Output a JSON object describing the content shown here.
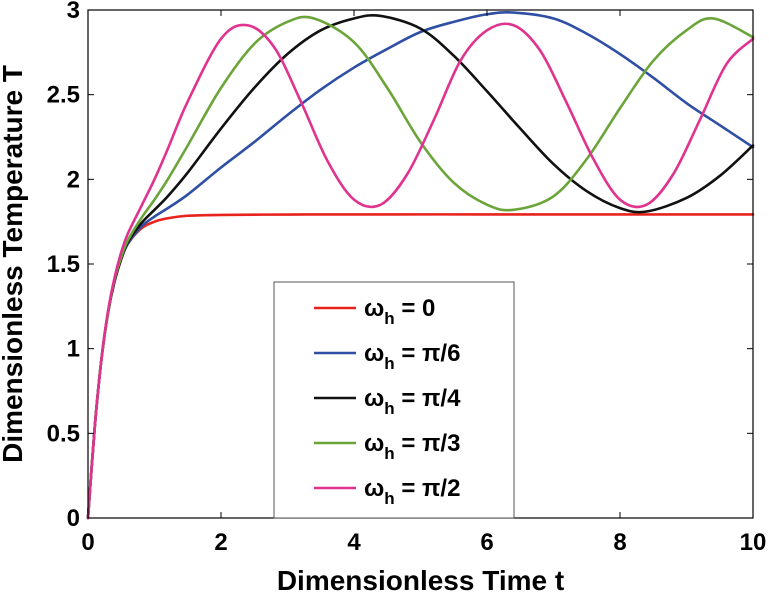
{
  "chart_data": {
    "type": "line",
    "title": "",
    "xlabel": "Dimensionless Time t",
    "ylabel": "Dimensionless Temperature T",
    "xlim": [
      0,
      10
    ],
    "ylim": [
      0,
      3
    ],
    "xticks": [
      0,
      2,
      4,
      6,
      8,
      10
    ],
    "yticks": [
      0,
      0.5,
      1,
      1.5,
      2,
      2.5,
      3
    ],
    "xtick_labels": [
      "0",
      "2",
      "4",
      "6",
      "8",
      "10"
    ],
    "ytick_labels": [
      "0",
      "0.5",
      "1",
      "1.5",
      "2",
      "2.5",
      "3"
    ],
    "grid": false,
    "legend_position": "bottom-center",
    "series": [
      {
        "name": "ω_h = 0",
        "legend_main": "ω",
        "legend_sub": "h",
        "legend_rest": " = 0",
        "color": "#e8231d",
        "x": [
          0,
          0.1,
          0.2,
          0.3,
          0.4,
          0.5,
          0.6,
          0.8,
          1.0,
          1.2,
          1.5,
          2.0,
          3.0,
          4.0,
          6.0,
          8.0,
          10.0
        ],
        "y": [
          0,
          0.53,
          0.93,
          1.21,
          1.4,
          1.53,
          1.62,
          1.71,
          1.75,
          1.77,
          1.785,
          1.79,
          1.792,
          1.793,
          1.793,
          1.793,
          1.793
        ]
      },
      {
        "name": "ω_h = π/6",
        "legend_main": "ω",
        "legend_sub": "h",
        "legend_rest": " = π/6",
        "color": "#2e4fa3",
        "x": [
          0,
          0.1,
          0.2,
          0.3,
          0.4,
          0.5,
          0.6,
          0.8,
          1.0,
          1.2,
          1.5,
          2.0,
          2.5,
          3.0,
          3.5,
          4.0,
          4.5,
          5.0,
          5.5,
          6.0,
          6.4,
          7.0,
          7.5,
          8.0,
          8.5,
          9.0,
          9.5,
          10.0
        ],
        "y": [
          0,
          0.53,
          0.93,
          1.21,
          1.4,
          1.53,
          1.62,
          1.72,
          1.78,
          1.83,
          1.91,
          2.07,
          2.22,
          2.38,
          2.53,
          2.66,
          2.77,
          2.87,
          2.93,
          2.975,
          2.985,
          2.95,
          2.86,
          2.74,
          2.6,
          2.45,
          2.32,
          2.19
        ]
      },
      {
        "name": "ω_h = π/4",
        "legend_main": "ω",
        "legend_sub": "h",
        "legend_rest": " = π/4",
        "color": "#111111",
        "x": [
          0,
          0.1,
          0.2,
          0.3,
          0.4,
          0.5,
          0.6,
          0.8,
          1.0,
          1.2,
          1.5,
          2.0,
          2.5,
          3.0,
          3.5,
          4.0,
          4.4,
          5.0,
          5.5,
          6.0,
          6.5,
          7.0,
          7.5,
          8.0,
          8.4,
          9.0,
          9.5,
          10.0
        ],
        "y": [
          0,
          0.53,
          0.93,
          1.21,
          1.4,
          1.53,
          1.63,
          1.74,
          1.82,
          1.9,
          2.04,
          2.3,
          2.54,
          2.74,
          2.88,
          2.95,
          2.965,
          2.89,
          2.73,
          2.52,
          2.3,
          2.09,
          1.93,
          1.83,
          1.81,
          1.89,
          2.02,
          2.2
        ]
      },
      {
        "name": "ω_h = π/3",
        "legend_main": "ω",
        "legend_sub": "h",
        "legend_rest": " = π/3",
        "color": "#6ba53a",
        "x": [
          0,
          0.1,
          0.2,
          0.3,
          0.4,
          0.5,
          0.6,
          0.8,
          1.0,
          1.2,
          1.5,
          2.0,
          2.5,
          3.0,
          3.4,
          4.0,
          4.5,
          5.0,
          5.5,
          6.0,
          6.4,
          7.0,
          7.5,
          8.0,
          8.5,
          9.0,
          9.4,
          10.0
        ],
        "y": [
          0,
          0.53,
          0.93,
          1.21,
          1.41,
          1.54,
          1.64,
          1.77,
          1.88,
          2.0,
          2.2,
          2.54,
          2.8,
          2.93,
          2.95,
          2.81,
          2.54,
          2.22,
          1.98,
          1.85,
          1.82,
          1.9,
          2.12,
          2.42,
          2.7,
          2.88,
          2.95,
          2.84
        ]
      },
      {
        "name": "ω_h = π/2",
        "legend_main": "ω",
        "legend_sub": "h",
        "legend_rest": " = π/2",
        "color": "#e0338f",
        "x": [
          0,
          0.1,
          0.2,
          0.3,
          0.4,
          0.5,
          0.6,
          0.8,
          1.0,
          1.2,
          1.5,
          2.0,
          2.4,
          2.8,
          3.2,
          3.6,
          4.0,
          4.4,
          4.8,
          5.2,
          5.6,
          6.0,
          6.4,
          6.8,
          7.2,
          7.6,
          8.0,
          8.4,
          8.8,
          9.2,
          9.6,
          10.0
        ],
        "y": [
          0,
          0.53,
          0.93,
          1.22,
          1.42,
          1.57,
          1.68,
          1.84,
          2.0,
          2.18,
          2.46,
          2.83,
          2.91,
          2.78,
          2.46,
          2.11,
          1.88,
          1.85,
          2.03,
          2.35,
          2.7,
          2.88,
          2.91,
          2.76,
          2.45,
          2.12,
          1.88,
          1.85,
          2.03,
          2.35,
          2.68,
          2.83
        ]
      }
    ]
  }
}
